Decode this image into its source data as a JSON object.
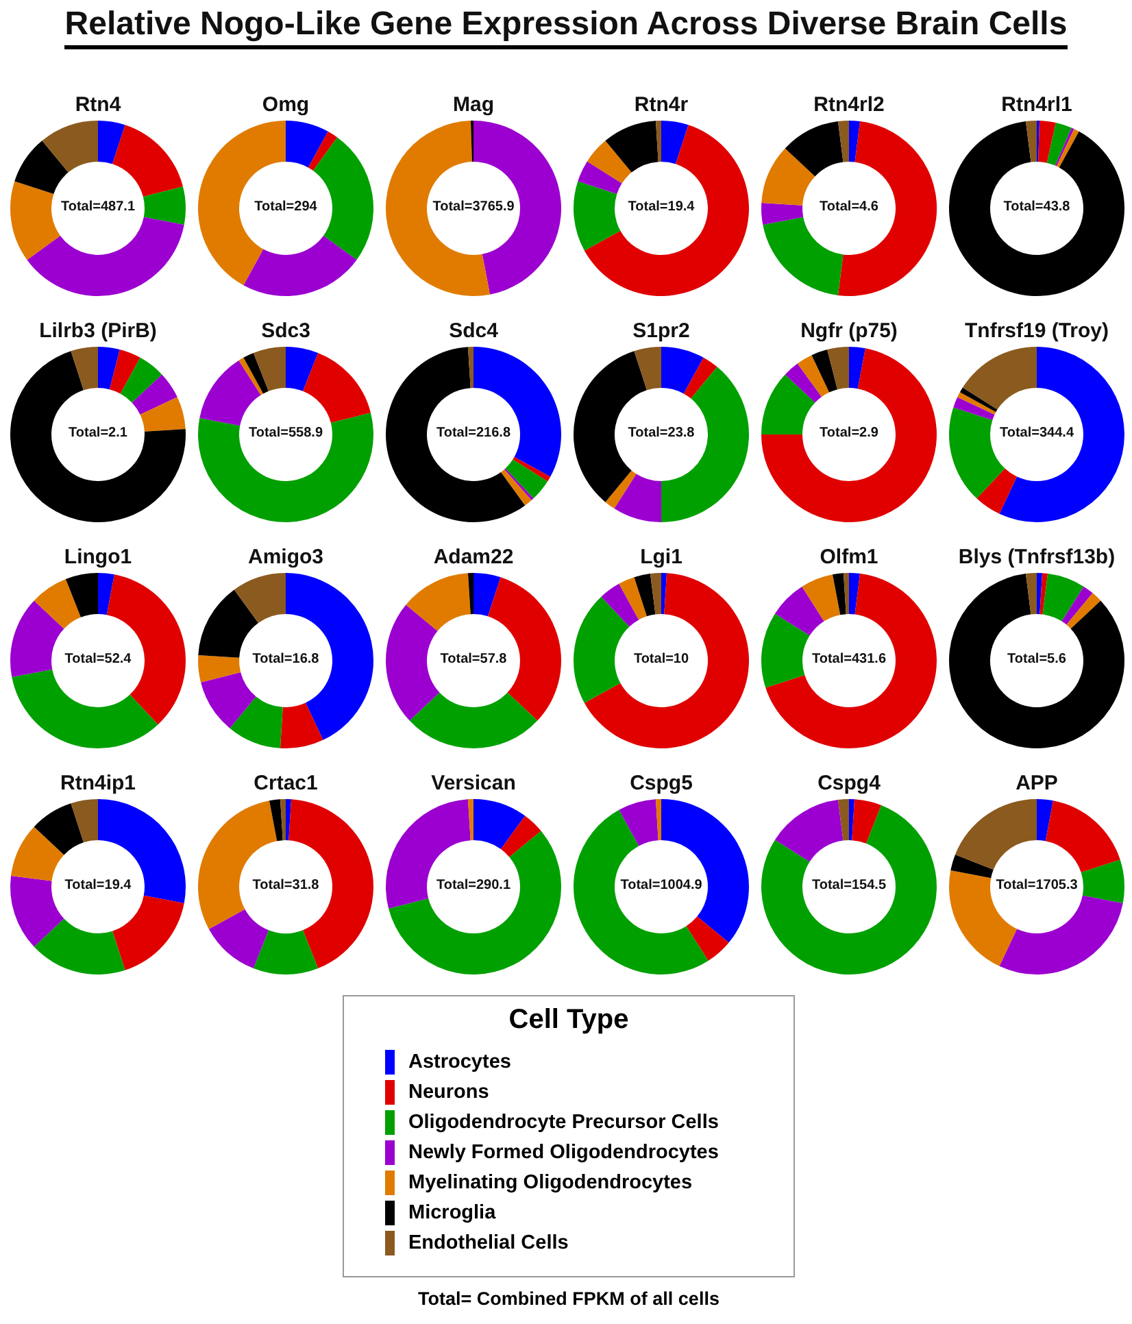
{
  "chart_data": [
    {
      "type": "other",
      "title": "Relative Nogo-Like Gene Expression Across Diverse Brain Cells"
    },
    {
      "type": "donut",
      "title": "Rtn4",
      "annotations": [
        "Total=487.1"
      ],
      "categories": [
        null,
        null,
        null,
        null,
        null,
        null,
        null
      ],
      "colors": [
        "#0000ff",
        "#e00000",
        "#00a000",
        "#9b00d0",
        "#e07b00",
        "#000000",
        "#8b5a1e"
      ],
      "values": [
        5,
        16,
        7,
        37,
        15,
        9,
        11
      ]
    },
    {
      "type": "donut",
      "title": "Omg",
      "annotations": [
        "Total=294"
      ],
      "categories": [
        null,
        null,
        null,
        null,
        null,
        null,
        null
      ],
      "colors": [
        "#0000ff",
        "#e00000",
        "#00a000",
        "#9b00d0",
        "#e07b00",
        "#000000",
        "#8b5a1e"
      ],
      "values": [
        8,
        2,
        25,
        23,
        42,
        0,
        0
      ]
    },
    {
      "type": "donut",
      "title": "Mag",
      "annotations": [
        "Total=3765.9"
      ],
      "categories": [
        null,
        null,
        null,
        null,
        null,
        null,
        null
      ],
      "colors": [
        "#0000ff",
        "#e00000",
        "#00a000",
        "#9b00d0",
        "#e07b00",
        "#000000",
        "#8b5a1e"
      ],
      "values": [
        0,
        0,
        0,
        47,
        52.5,
        0.5,
        0
      ]
    },
    {
      "type": "donut",
      "title": "Rtn4r",
      "annotations": [
        "Total=19.4"
      ],
      "categories": [
        null,
        null,
        null,
        null,
        null,
        null,
        null
      ],
      "colors": [
        "#0000ff",
        "#e00000",
        "#00a000",
        "#9b00d0",
        "#e07b00",
        "#000000",
        "#8b5a1e"
      ],
      "values": [
        5,
        62,
        13,
        4,
        5,
        10,
        1
      ]
    },
    {
      "type": "donut",
      "title": "Rtn4rl2",
      "annotations": [
        "Total=4.6"
      ],
      "categories": [
        null,
        null,
        null,
        null,
        null,
        null,
        null
      ],
      "colors": [
        "#0000ff",
        "#e00000",
        "#00a000",
        "#9b00d0",
        "#e07b00",
        "#000000",
        "#8b5a1e"
      ],
      "values": [
        2,
        50,
        20,
        4,
        11,
        11,
        2
      ]
    },
    {
      "type": "donut",
      "title": "Rtn4rl1",
      "annotations": [
        "Total=43.8"
      ],
      "categories": [
        null,
        null,
        null,
        null,
        null,
        null,
        null
      ],
      "colors": [
        "#0000ff",
        "#e00000",
        "#00a000",
        "#9b00d0",
        "#e07b00",
        "#000000",
        "#8b5a1e"
      ],
      "values": [
        0.5,
        3,
        3,
        0.5,
        1,
        90,
        2
      ]
    },
    {
      "type": "donut",
      "title": "Lilrb3 (PirB)",
      "annotations": [
        "Total=2.1"
      ],
      "categories": [
        null,
        null,
        null,
        null,
        null,
        null,
        null
      ],
      "colors": [
        "#0000ff",
        "#e00000",
        "#00a000",
        "#9b00d0",
        "#e07b00",
        "#000000",
        "#8b5a1e"
      ],
      "values": [
        4,
        4,
        5,
        5,
        6,
        71,
        5
      ]
    },
    {
      "type": "donut",
      "title": "Sdc3",
      "annotations": [
        "Total=558.9"
      ],
      "categories": [
        null,
        null,
        null,
        null,
        null,
        null,
        null
      ],
      "colors": [
        "#0000ff",
        "#e00000",
        "#00a000",
        "#9b00d0",
        "#e07b00",
        "#000000",
        "#8b5a1e"
      ],
      "values": [
        6,
        15,
        57,
        13,
        1,
        2,
        6
      ]
    },
    {
      "type": "donut",
      "title": "Sdc4",
      "annotations": [
        "Total=216.8"
      ],
      "categories": [
        null,
        null,
        null,
        null,
        null,
        null,
        null
      ],
      "colors": [
        "#0000ff",
        "#e00000",
        "#00a000",
        "#9b00d0",
        "#e07b00",
        "#000000",
        "#8b5a1e"
      ],
      "values": [
        33,
        1,
        4,
        0.5,
        1.5,
        59,
        1
      ]
    },
    {
      "type": "donut",
      "title": "S1pr2",
      "annotations": [
        "Total=23.8"
      ],
      "categories": [
        null,
        null,
        null,
        null,
        null,
        null,
        null
      ],
      "colors": [
        "#0000ff",
        "#e00000",
        "#00a000",
        "#9b00d0",
        "#e07b00",
        "#000000",
        "#8b5a1e"
      ],
      "values": [
        8,
        3,
        39,
        9,
        2,
        34,
        5
      ]
    },
    {
      "type": "donut",
      "title": "Ngfr (p75)",
      "annotations": [
        "Total=2.9"
      ],
      "categories": [
        null,
        null,
        null,
        null,
        null,
        null,
        null
      ],
      "colors": [
        "#0000ff",
        "#e00000",
        "#00a000",
        "#9b00d0",
        "#e07b00",
        "#000000",
        "#8b5a1e"
      ],
      "values": [
        3,
        72,
        12,
        3,
        3,
        3,
        4
      ]
    },
    {
      "type": "donut",
      "title": "Tnfrsf19 (Troy)",
      "annotations": [
        "Total=344.4"
      ],
      "categories": [
        null,
        null,
        null,
        null,
        null,
        null,
        null
      ],
      "colors": [
        "#0000ff",
        "#e00000",
        "#00a000",
        "#9b00d0",
        "#e07b00",
        "#000000",
        "#8b5a1e"
      ],
      "values": [
        57,
        5,
        18,
        2,
        1,
        1,
        16
      ]
    },
    {
      "type": "donut",
      "title": "Lingo1",
      "annotations": [
        "Total=52.4"
      ],
      "categories": [
        null,
        null,
        null,
        null,
        null,
        null,
        null
      ],
      "colors": [
        "#0000ff",
        "#e00000",
        "#00a000",
        "#9b00d0",
        "#e07b00",
        "#000000",
        "#8b5a1e"
      ],
      "values": [
        3,
        35,
        34,
        15,
        7,
        6,
        0
      ]
    },
    {
      "type": "donut",
      "title": "Amigo3",
      "annotations": [
        "Total=16.8"
      ],
      "categories": [
        null,
        null,
        null,
        null,
        null,
        null,
        null
      ],
      "colors": [
        "#0000ff",
        "#e00000",
        "#00a000",
        "#9b00d0",
        "#e07b00",
        "#000000",
        "#8b5a1e"
      ],
      "values": [
        43,
        8,
        10,
        10,
        5,
        14,
        10
      ]
    },
    {
      "type": "donut",
      "title": "Adam22",
      "annotations": [
        "Total=57.8"
      ],
      "categories": [
        null,
        null,
        null,
        null,
        null,
        null,
        null
      ],
      "colors": [
        "#0000ff",
        "#e00000",
        "#00a000",
        "#9b00d0",
        "#e07b00",
        "#000000",
        "#8b5a1e"
      ],
      "values": [
        5,
        32,
        26,
        23,
        13,
        1,
        0
      ]
    },
    {
      "type": "donut",
      "title": "Lgi1",
      "annotations": [
        "Total=10"
      ],
      "categories": [
        null,
        null,
        null,
        null,
        null,
        null,
        null
      ],
      "colors": [
        "#0000ff",
        "#e00000",
        "#00a000",
        "#9b00d0",
        "#e07b00",
        "#000000",
        "#8b5a1e"
      ],
      "values": [
        1,
        66,
        21,
        4,
        3,
        3,
        2
      ]
    },
    {
      "type": "donut",
      "title": "Olfm1",
      "annotations": [
        "Total=431.6"
      ],
      "categories": [
        null,
        null,
        null,
        null,
        null,
        null,
        null
      ],
      "colors": [
        "#0000ff",
        "#e00000",
        "#00a000",
        "#9b00d0",
        "#e07b00",
        "#000000",
        "#8b5a1e"
      ],
      "values": [
        2,
        68,
        14,
        7,
        6,
        2,
        1
      ]
    },
    {
      "type": "donut",
      "title": "Blys (Tnfrsf13b)",
      "annotations": [
        "Total=5.6"
      ],
      "categories": [
        null,
        null,
        null,
        null,
        null,
        null,
        null
      ],
      "colors": [
        "#0000ff",
        "#e00000",
        "#00a000",
        "#9b00d0",
        "#e07b00",
        "#000000",
        "#8b5a1e"
      ],
      "values": [
        1,
        1,
        7,
        2,
        2,
        85,
        2
      ]
    },
    {
      "type": "donut",
      "title": "Rtn4ip1",
      "annotations": [
        "Total=19.4"
      ],
      "categories": [
        null,
        null,
        null,
        null,
        null,
        null,
        null
      ],
      "colors": [
        "#0000ff",
        "#e00000",
        "#00a000",
        "#9b00d0",
        "#e07b00",
        "#000000",
        "#8b5a1e"
      ],
      "values": [
        28,
        17,
        18,
        14,
        10,
        8,
        5
      ]
    },
    {
      "type": "donut",
      "title": "Crtac1",
      "annotations": [
        "Total=31.8"
      ],
      "categories": [
        null,
        null,
        null,
        null,
        null,
        null,
        null
      ],
      "colors": [
        "#0000ff",
        "#e00000",
        "#00a000",
        "#9b00d0",
        "#e07b00",
        "#000000",
        "#8b5a1e"
      ],
      "values": [
        1,
        43,
        12,
        11,
        30,
        2,
        1
      ]
    },
    {
      "type": "donut",
      "title": "Versican",
      "annotations": [
        "Total=290.1"
      ],
      "categories": [
        null,
        null,
        null,
        null,
        null,
        null,
        null
      ],
      "colors": [
        "#0000ff",
        "#e00000",
        "#00a000",
        "#9b00d0",
        "#e07b00",
        "#000000",
        "#8b5a1e"
      ],
      "values": [
        10,
        4,
        57,
        28,
        1,
        0,
        0
      ]
    },
    {
      "type": "donut",
      "title": "Cspg5",
      "annotations": [
        "Total=1004.9"
      ],
      "categories": [
        null,
        null,
        null,
        null,
        null,
        null,
        null
      ],
      "colors": [
        "#0000ff",
        "#e00000",
        "#00a000",
        "#9b00d0",
        "#e07b00",
        "#000000",
        "#8b5a1e"
      ],
      "values": [
        36,
        5,
        51,
        7,
        1,
        0,
        0
      ]
    },
    {
      "type": "donut",
      "title": "Cspg4",
      "annotations": [
        "Total=154.5"
      ],
      "categories": [
        null,
        null,
        null,
        null,
        null,
        null,
        null
      ],
      "colors": [
        "#0000ff",
        "#e00000",
        "#00a000",
        "#9b00d0",
        "#e07b00",
        "#000000",
        "#8b5a1e"
      ],
      "values": [
        1,
        5,
        78,
        14,
        0,
        0,
        2
      ]
    },
    {
      "type": "donut",
      "title": "APP",
      "annotations": [
        "Total=1705.3",
        "Total= Combined FPKM of all cells"
      ],
      "legend": "bottom",
      "legend_title": "Cell Type",
      "categories": [
        "Astrocytes",
        "Neurons",
        "Oligodendrocyte Precursor Cells",
        "Newly Formed Oligodendrocytes",
        "Myelinating Oligodendrocytes",
        "Microglia",
        "Endothelial Cells"
      ],
      "colors": [
        "#0000ff",
        "#e00000",
        "#00a000",
        "#9b00d0",
        "#e07b00",
        "#000000",
        "#8b5a1e"
      ],
      "values": [
        3,
        17,
        8,
        29,
        21,
        3,
        19
      ]
    }
  ]
}
